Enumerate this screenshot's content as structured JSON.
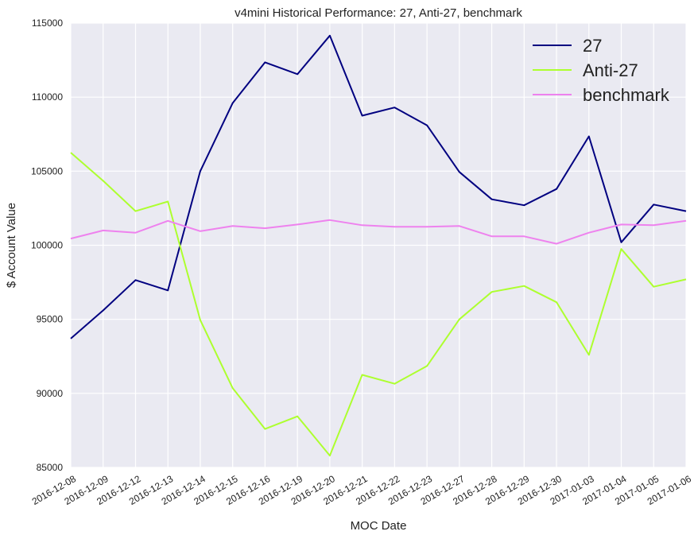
{
  "chart_data": {
    "type": "line",
    "title": "v4mini Historical Performance: 27, Anti-27, benchmark",
    "xlabel": "MOC Date",
    "ylabel": "$ Account Value",
    "ylim": [
      85000,
      115000
    ],
    "yticks": [
      85000,
      90000,
      95000,
      100000,
      105000,
      110000,
      115000
    ],
    "grid": true,
    "legend_position": "top-right",
    "categories": [
      "2016-12-08",
      "2016-12-09",
      "2016-12-12",
      "2016-12-13",
      "2016-12-14",
      "2016-12-15",
      "2016-12-16",
      "2016-12-19",
      "2016-12-20",
      "2016-12-21",
      "2016-12-22",
      "2016-12-23",
      "2016-12-27",
      "2016-12-28",
      "2016-12-29",
      "2016-12-30",
      "2017-01-03",
      "2017-01-04",
      "2017-01-05",
      "2017-01-06"
    ],
    "series": [
      {
        "name": "27",
        "color": "#000080",
        "values": [
          93700,
          95600,
          97650,
          96950,
          105000,
          109600,
          112350,
          111550,
          114150,
          108750,
          109300,
          108100,
          104950,
          103100,
          102700,
          103800,
          107350,
          100200,
          102750,
          102300
        ]
      },
      {
        "name": "Anti-27",
        "color": "#adff2f",
        "values": [
          106250,
          104350,
          102300,
          102950,
          94950,
          90350,
          87600,
          88450,
          85800,
          91250,
          90650,
          91850,
          95000,
          96850,
          97250,
          96150,
          92600,
          99750,
          97200,
          97700
        ]
      },
      {
        "name": "benchmark",
        "color": "#ee82ee",
        "values": [
          100450,
          101000,
          100850,
          101650,
          100950,
          101300,
          101150,
          101400,
          101700,
          101350,
          101250,
          101250,
          101300,
          100600,
          100600,
          100100,
          100850,
          101400,
          101350,
          101650
        ]
      }
    ]
  }
}
